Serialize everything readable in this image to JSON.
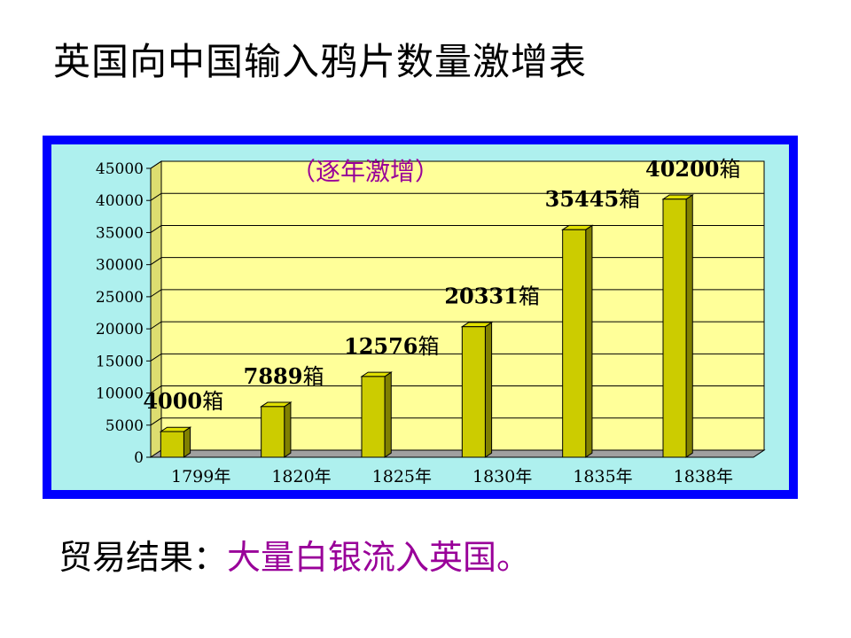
{
  "page": {
    "title": "英国向中国输入鸦片数量激增表",
    "result_label": "贸易结果：",
    "result_value": "大量白银流入英国。"
  },
  "colors": {
    "frame": "#0000ff",
    "chart_background": "#aef0ee",
    "plot_background": "#ffff99",
    "bar_front": "#cccc00",
    "bar_side": "#808000",
    "annotation": "#990099"
  },
  "chart_data": {
    "type": "bar",
    "title": "",
    "annotation": "（逐年激增）",
    "categories": [
      "1799年",
      "1820年",
      "1825年",
      "1830年",
      "1835年",
      "1838年"
    ],
    "values": [
      4000,
      7889,
      12576,
      20331,
      35445,
      40200
    ],
    "data_labels": [
      {
        "number": "4000",
        "unit": "箱"
      },
      {
        "number": "7889",
        "unit": "箱"
      },
      {
        "number": "12576",
        "unit": "箱"
      },
      {
        "number": "20331",
        "unit": "箱"
      },
      {
        "number": "35445",
        "unit": "箱"
      },
      {
        "number": "40200",
        "unit": "箱"
      }
    ],
    "y_ticks": [
      "0",
      "5000",
      "10000",
      "15000",
      "20000",
      "25000",
      "30000",
      "35000",
      "40000",
      "45000"
    ],
    "ylim": [
      0,
      45000
    ],
    "grid": true,
    "legend": "none"
  }
}
